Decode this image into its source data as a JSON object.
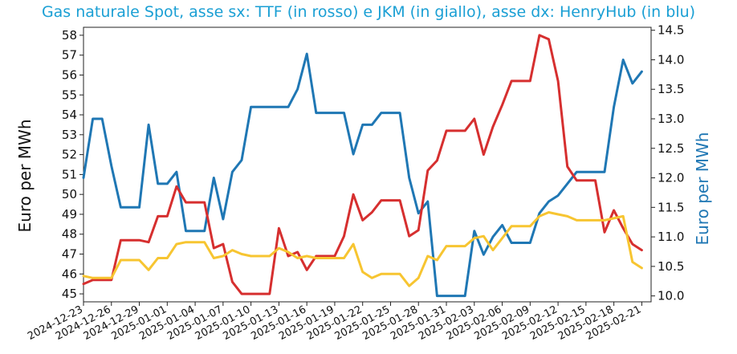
{
  "chart_data": {
    "type": "line",
    "title": "Gas naturale Spot, asse sx: TTF (in rosso) e JKM (in giallo), asse dx: HenryHub (in blu)",
    "ylabel_left": "Euro per MWh",
    "ylabel_right": "Euro per MWh",
    "x_start": "2024-12-23",
    "x_end": "2025-02-22",
    "x_ticks": [
      "2024-12-23",
      "2024-12-26",
      "2024-12-29",
      "2025-01-01",
      "2025-01-04",
      "2025-01-07",
      "2025-01-10",
      "2025-01-13",
      "2025-01-16",
      "2025-01-19",
      "2025-01-22",
      "2025-01-25",
      "2025-01-28",
      "2025-01-31",
      "2025-02-03",
      "2025-02-06",
      "2025-02-09",
      "2025-02-12",
      "2025-02-15",
      "2025-02-18",
      "2025-02-21"
    ],
    "y_left_range": [
      44.6,
      58.4
    ],
    "y_left_ticks": [
      45,
      46,
      47,
      48,
      49,
      50,
      51,
      52,
      53,
      54,
      55,
      56,
      57,
      58
    ],
    "y_right_range": [
      9.9,
      14.55
    ],
    "y_right_ticks": [
      "10.0",
      "10.5",
      "11.0",
      "11.5",
      "12.0",
      "12.5",
      "13.0",
      "13.5",
      "14.0",
      "14.5"
    ],
    "colors": {
      "ttf": "#d62f2f",
      "jkm": "#f7c531",
      "henryhub": "#1f77b4"
    },
    "series": [
      {
        "key": "ttf",
        "axis": "left",
        "points": [
          [
            "2024-12-23",
            45.5
          ],
          [
            "2024-12-24",
            45.7
          ],
          [
            "2024-12-25",
            45.7
          ],
          [
            "2024-12-26",
            45.7
          ],
          [
            "2024-12-27",
            47.7
          ],
          [
            "2024-12-28",
            47.7
          ],
          [
            "2024-12-29",
            47.7
          ],
          [
            "2024-12-30",
            47.6
          ],
          [
            "2024-12-31",
            48.9
          ],
          [
            "2025-01-01",
            48.9
          ],
          [
            "2025-01-02",
            50.4
          ],
          [
            "2025-01-03",
            49.6
          ],
          [
            "2025-01-04",
            49.6
          ],
          [
            "2025-01-05",
            49.6
          ],
          [
            "2025-01-06",
            47.3
          ],
          [
            "2025-01-07",
            47.5
          ],
          [
            "2025-01-08",
            45.6
          ],
          [
            "2025-01-09",
            45.0
          ],
          [
            "2025-01-10",
            45.0
          ],
          [
            "2025-01-11",
            45.0
          ],
          [
            "2025-01-12",
            45.0
          ],
          [
            "2025-01-13",
            48.3
          ],
          [
            "2025-01-14",
            46.9
          ],
          [
            "2025-01-15",
            47.1
          ],
          [
            "2025-01-16",
            46.2
          ],
          [
            "2025-01-17",
            46.9
          ],
          [
            "2025-01-18",
            46.9
          ],
          [
            "2025-01-19",
            46.9
          ],
          [
            "2025-01-20",
            47.9
          ],
          [
            "2025-01-21",
            50.0
          ],
          [
            "2025-01-22",
            48.7
          ],
          [
            "2025-01-23",
            49.1
          ],
          [
            "2025-01-24",
            49.7
          ],
          [
            "2025-01-25",
            49.7
          ],
          [
            "2025-01-26",
            49.7
          ],
          [
            "2025-01-27",
            47.9
          ],
          [
            "2025-01-28",
            48.2
          ],
          [
            "2025-01-29",
            51.2
          ],
          [
            "2025-01-30",
            51.7
          ],
          [
            "2025-01-31",
            53.2
          ],
          [
            "2025-02-01",
            53.2
          ],
          [
            "2025-02-02",
            53.2
          ],
          [
            "2025-02-03",
            53.8
          ],
          [
            "2025-02-04",
            52.0
          ],
          [
            "2025-02-05",
            53.4
          ],
          [
            "2025-02-06",
            54.5
          ],
          [
            "2025-02-07",
            55.7
          ],
          [
            "2025-02-08",
            55.7
          ],
          [
            "2025-02-09",
            55.7
          ],
          [
            "2025-02-10",
            58.0
          ],
          [
            "2025-02-11",
            57.8
          ],
          [
            "2025-02-12",
            55.7
          ],
          [
            "2025-02-13",
            51.4
          ],
          [
            "2025-02-14",
            50.7
          ],
          [
            "2025-02-15",
            50.7
          ],
          [
            "2025-02-16",
            50.7
          ],
          [
            "2025-02-17",
            48.1
          ],
          [
            "2025-02-18",
            49.2
          ],
          [
            "2025-02-19",
            48.3
          ],
          [
            "2025-02-20",
            47.5
          ],
          [
            "2025-02-21",
            47.2
          ]
        ]
      },
      {
        "key": "jkm",
        "axis": "left",
        "points": [
          [
            "2024-12-23",
            45.9
          ],
          [
            "2024-12-24",
            45.8
          ],
          [
            "2024-12-25",
            45.8
          ],
          [
            "2024-12-26",
            45.8
          ],
          [
            "2024-12-27",
            46.7
          ],
          [
            "2024-12-28",
            46.7
          ],
          [
            "2024-12-29",
            46.7
          ],
          [
            "2024-12-30",
            46.2
          ],
          [
            "2024-12-31",
            46.8
          ],
          [
            "2025-01-01",
            46.8
          ],
          [
            "2025-01-02",
            47.5
          ],
          [
            "2025-01-03",
            47.6
          ],
          [
            "2025-01-04",
            47.6
          ],
          [
            "2025-01-05",
            47.6
          ],
          [
            "2025-01-06",
            46.8
          ],
          [
            "2025-01-07",
            46.9
          ],
          [
            "2025-01-08",
            47.2
          ],
          [
            "2025-01-09",
            47.0
          ],
          [
            "2025-01-10",
            46.9
          ],
          [
            "2025-01-11",
            46.9
          ],
          [
            "2025-01-12",
            46.9
          ],
          [
            "2025-01-13",
            47.3
          ],
          [
            "2025-01-14",
            47.1
          ],
          [
            "2025-01-15",
            46.8
          ],
          [
            "2025-01-16",
            46.9
          ],
          [
            "2025-01-17",
            46.8
          ],
          [
            "2025-01-18",
            46.8
          ],
          [
            "2025-01-19",
            46.8
          ],
          [
            "2025-01-20",
            46.8
          ],
          [
            "2025-01-21",
            47.5
          ],
          [
            "2025-01-22",
            46.1
          ],
          [
            "2025-01-23",
            45.8
          ],
          [
            "2025-01-24",
            46.0
          ],
          [
            "2025-01-25",
            46.0
          ],
          [
            "2025-01-26",
            46.0
          ],
          [
            "2025-01-27",
            45.4
          ],
          [
            "2025-01-28",
            45.8
          ],
          [
            "2025-01-29",
            46.9
          ],
          [
            "2025-01-30",
            46.7
          ],
          [
            "2025-01-31",
            47.4
          ],
          [
            "2025-02-01",
            47.4
          ],
          [
            "2025-02-02",
            47.4
          ],
          [
            "2025-02-03",
            47.8
          ],
          [
            "2025-02-04",
            47.9
          ],
          [
            "2025-02-05",
            47.2
          ],
          [
            "2025-02-06",
            47.8
          ],
          [
            "2025-02-07",
            48.4
          ],
          [
            "2025-02-08",
            48.4
          ],
          [
            "2025-02-09",
            48.4
          ],
          [
            "2025-02-10",
            48.9
          ],
          [
            "2025-02-11",
            49.1
          ],
          [
            "2025-02-12",
            49.0
          ],
          [
            "2025-02-13",
            48.9
          ],
          [
            "2025-02-14",
            48.7
          ],
          [
            "2025-02-15",
            48.7
          ],
          [
            "2025-02-16",
            48.7
          ],
          [
            "2025-02-17",
            48.7
          ],
          [
            "2025-02-18",
            48.8
          ],
          [
            "2025-02-19",
            48.9
          ],
          [
            "2025-02-20",
            46.6
          ],
          [
            "2025-02-21",
            46.3
          ]
        ]
      },
      {
        "key": "henryhub",
        "axis": "right",
        "points": [
          [
            "2024-12-23",
            12.0
          ],
          [
            "2024-12-24",
            13.0
          ],
          [
            "2024-12-25",
            13.0
          ],
          [
            "2024-12-26",
            12.2
          ],
          [
            "2024-12-27",
            11.5
          ],
          [
            "2024-12-28",
            11.5
          ],
          [
            "2024-12-29",
            11.5
          ],
          [
            "2024-12-30",
            12.9
          ],
          [
            "2024-12-31",
            11.9
          ],
          [
            "2025-01-01",
            11.9
          ],
          [
            "2025-01-02",
            12.1
          ],
          [
            "2025-01-03",
            11.1
          ],
          [
            "2025-01-04",
            11.1
          ],
          [
            "2025-01-05",
            11.1
          ],
          [
            "2025-01-06",
            12.0
          ],
          [
            "2025-01-07",
            11.3
          ],
          [
            "2025-01-08",
            12.1
          ],
          [
            "2025-01-09",
            12.3
          ],
          [
            "2025-01-10",
            13.2
          ],
          [
            "2025-01-11",
            13.2
          ],
          [
            "2025-01-12",
            13.2
          ],
          [
            "2025-01-13",
            13.2
          ],
          [
            "2025-01-14",
            13.2
          ],
          [
            "2025-01-15",
            13.5
          ],
          [
            "2025-01-16",
            14.1
          ],
          [
            "2025-01-17",
            13.1
          ],
          [
            "2025-01-18",
            13.1
          ],
          [
            "2025-01-19",
            13.1
          ],
          [
            "2025-01-20",
            13.1
          ],
          [
            "2025-01-21",
            12.4
          ],
          [
            "2025-01-22",
            12.9
          ],
          [
            "2025-01-23",
            12.9
          ],
          [
            "2025-01-24",
            13.1
          ],
          [
            "2025-01-25",
            13.1
          ],
          [
            "2025-01-26",
            13.1
          ],
          [
            "2025-01-27",
            12.0
          ],
          [
            "2025-01-28",
            11.4
          ],
          [
            "2025-01-29",
            11.6
          ],
          [
            "2025-01-30",
            10.0
          ],
          [
            "2025-01-31",
            10.0
          ],
          [
            "2025-02-01",
            10.0
          ],
          [
            "2025-02-02",
            10.0
          ],
          [
            "2025-02-03",
            11.1
          ],
          [
            "2025-02-04",
            10.7
          ],
          [
            "2025-02-05",
            11.0
          ],
          [
            "2025-02-06",
            11.2
          ],
          [
            "2025-02-07",
            10.9
          ],
          [
            "2025-02-08",
            10.9
          ],
          [
            "2025-02-09",
            10.9
          ],
          [
            "2025-02-10",
            11.4
          ],
          [
            "2025-02-11",
            11.6
          ],
          [
            "2025-02-12",
            11.7
          ],
          [
            "2025-02-13",
            11.9
          ],
          [
            "2025-02-14",
            12.1
          ],
          [
            "2025-02-15",
            12.1
          ],
          [
            "2025-02-16",
            12.1
          ],
          [
            "2025-02-17",
            12.1
          ],
          [
            "2025-02-18",
            13.2
          ],
          [
            "2025-02-19",
            14.0
          ],
          [
            "2025-02-20",
            13.6
          ],
          [
            "2025-02-21",
            13.8
          ]
        ]
      }
    ]
  }
}
